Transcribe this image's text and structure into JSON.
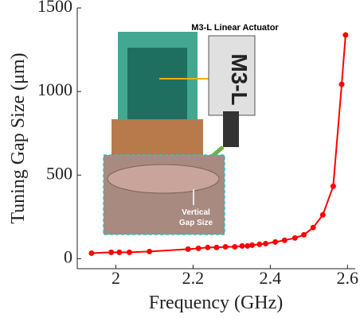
{
  "chart_data": {
    "type": "line",
    "x_label": "Frequency (GHz)",
    "y_label": "Tuning Gap Size (μm)",
    "xlim": [
      1.9,
      2.62
    ],
    "ylim": [
      -60,
      1500
    ],
    "xticks": [
      2,
      2.2,
      2.4,
      2.6
    ],
    "yticks": [
      0,
      500,
      1000,
      1500
    ],
    "series": [
      {
        "name": "Tuning gap",
        "color": "#ff0000",
        "x": [
          1.937,
          1.988,
          2.009,
          2.035,
          2.087,
          2.187,
          2.214,
          2.238,
          2.261,
          2.284,
          2.308,
          2.327,
          2.341,
          2.353,
          2.372,
          2.388,
          2.413,
          2.437,
          2.464,
          2.487,
          2.511,
          2.536,
          2.563,
          2.585,
          2.595
        ],
        "values": [
          33,
          38,
          38,
          38,
          43,
          57,
          62,
          67,
          67,
          71,
          71,
          76,
          76,
          81,
          86,
          90,
          100,
          110,
          124,
          143,
          186,
          262,
          433,
          1043,
          1338
        ]
      }
    ],
    "annotations": [
      "M3-L Linear Actuator",
      "M3-L",
      "Vertical",
      "Gap Size"
    ]
  }
}
